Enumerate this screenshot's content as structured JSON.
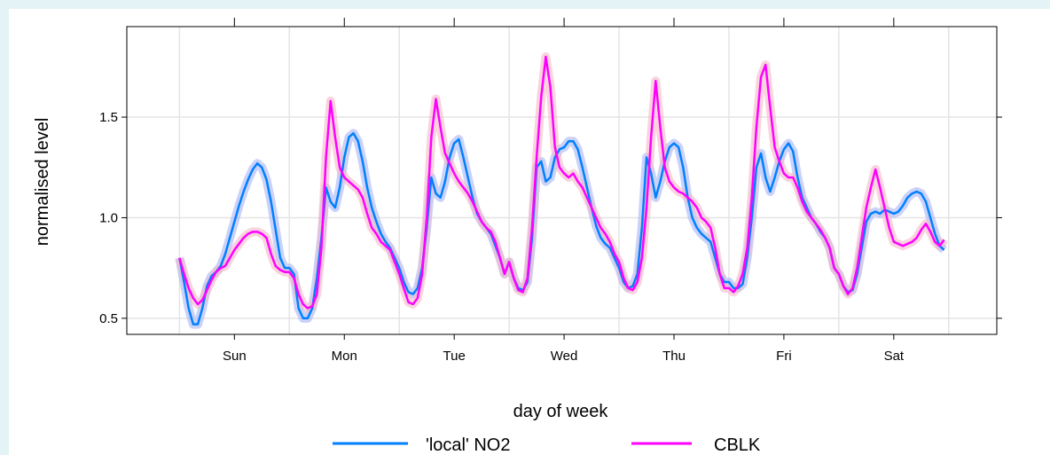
{
  "chart_data": {
    "type": "line",
    "x_label": "day of week",
    "y_label": "normalised level",
    "x": [
      0,
      1,
      2,
      3,
      4,
      5,
      6,
      7,
      8,
      9,
      10,
      11,
      12,
      13,
      14,
      15,
      16,
      17,
      18,
      19,
      20,
      21,
      22,
      23,
      24,
      25,
      26,
      27,
      28,
      29,
      30,
      31,
      32,
      33,
      34,
      35,
      36,
      37,
      38,
      39,
      40,
      41,
      42,
      43,
      44,
      45,
      46,
      47,
      48,
      49,
      50,
      51,
      52,
      53,
      54,
      55,
      56,
      57,
      58,
      59,
      60,
      61,
      62,
      63,
      64,
      65,
      66,
      67,
      68,
      69,
      70,
      71,
      72,
      73,
      74,
      75,
      76,
      77,
      78,
      79,
      80,
      81,
      82,
      83,
      84,
      85,
      86,
      87,
      88,
      89,
      90,
      91,
      92,
      93,
      94,
      95,
      96,
      97,
      98,
      99,
      100,
      101,
      102,
      103,
      104,
      105,
      106,
      107,
      108,
      109,
      110,
      111,
      112,
      113,
      114,
      115,
      116,
      117,
      118,
      119,
      120,
      121,
      122,
      123,
      124,
      125,
      126,
      127,
      128,
      129,
      130,
      131,
      132,
      133,
      134,
      135,
      136,
      137,
      138,
      139,
      140,
      141,
      142,
      143,
      144,
      145,
      146,
      147,
      148,
      149,
      150,
      151,
      152,
      153,
      154,
      155,
      156,
      157,
      158,
      159,
      160,
      161,
      162,
      163,
      164,
      165,
      166,
      167
    ],
    "series": [
      {
        "name": "'local' NO2",
        "color": "#0080ff",
        "band_color": "#a9b4f5",
        "values": [
          0.8,
          0.68,
          0.55,
          0.47,
          0.47,
          0.55,
          0.66,
          0.71,
          0.73,
          0.76,
          0.82,
          0.9,
          0.98,
          1.06,
          1.13,
          1.19,
          1.24,
          1.27,
          1.25,
          1.19,
          1.08,
          0.94,
          0.8,
          0.75,
          0.75,
          0.72,
          0.55,
          0.5,
          0.5,
          0.55,
          0.7,
          0.9,
          1.15,
          1.08,
          1.05,
          1.15,
          1.3,
          1.4,
          1.42,
          1.38,
          1.28,
          1.15,
          1.05,
          0.98,
          0.92,
          0.88,
          0.85,
          0.8,
          0.75,
          0.68,
          0.63,
          0.62,
          0.65,
          0.75,
          0.95,
          1.2,
          1.12,
          1.1,
          1.18,
          1.3,
          1.37,
          1.39,
          1.3,
          1.2,
          1.1,
          1.02,
          0.98,
          0.95,
          0.92,
          0.86,
          0.8,
          0.72,
          0.78,
          0.7,
          0.65,
          0.64,
          0.68,
          0.9,
          1.25,
          1.28,
          1.18,
          1.2,
          1.3,
          1.34,
          1.35,
          1.38,
          1.38,
          1.34,
          1.25,
          1.15,
          1.05,
          0.96,
          0.9,
          0.87,
          0.85,
          0.8,
          0.75,
          0.68,
          0.65,
          0.66,
          0.72,
          0.95,
          1.3,
          1.22,
          1.1,
          1.18,
          1.28,
          1.35,
          1.37,
          1.35,
          1.25,
          1.1,
          1.0,
          0.95,
          0.92,
          0.9,
          0.88,
          0.8,
          0.72,
          0.68,
          0.68,
          0.65,
          0.65,
          0.67,
          0.8,
          1.0,
          1.25,
          1.32,
          1.2,
          1.13,
          1.2,
          1.28,
          1.34,
          1.37,
          1.33,
          1.2,
          1.1,
          1.05,
          1.0,
          0.97,
          0.93,
          0.9,
          0.85,
          0.75,
          0.72,
          0.66,
          0.63,
          0.64,
          0.72,
          0.85,
          0.98,
          1.02,
          1.03,
          1.02,
          1.04,
          1.03,
          1.02,
          1.03,
          1.06,
          1.1,
          1.12,
          1.13,
          1.12,
          1.08,
          1.0,
          0.92,
          0.86,
          0.84
        ]
      },
      {
        "name": "CBLK",
        "color": "#ff00ff",
        "band_color": "#f5b8c8",
        "values": [
          0.8,
          0.72,
          0.65,
          0.6,
          0.57,
          0.59,
          0.64,
          0.69,
          0.73,
          0.75,
          0.76,
          0.8,
          0.84,
          0.87,
          0.9,
          0.92,
          0.93,
          0.93,
          0.92,
          0.9,
          0.82,
          0.76,
          0.74,
          0.73,
          0.73,
          0.7,
          0.62,
          0.57,
          0.55,
          0.56,
          0.62,
          0.85,
          1.3,
          1.58,
          1.4,
          1.25,
          1.2,
          1.18,
          1.16,
          1.14,
          1.1,
          1.02,
          0.95,
          0.92,
          0.88,
          0.86,
          0.84,
          0.78,
          0.72,
          0.65,
          0.58,
          0.57,
          0.6,
          0.72,
          1.0,
          1.4,
          1.59,
          1.45,
          1.32,
          1.27,
          1.22,
          1.18,
          1.15,
          1.12,
          1.08,
          1.03,
          0.98,
          0.95,
          0.93,
          0.88,
          0.8,
          0.72,
          0.78,
          0.7,
          0.64,
          0.63,
          0.7,
          0.95,
          1.3,
          1.6,
          1.8,
          1.65,
          1.35,
          1.25,
          1.22,
          1.2,
          1.22,
          1.18,
          1.15,
          1.1,
          1.05,
          1.0,
          0.95,
          0.92,
          0.88,
          0.82,
          0.78,
          0.7,
          0.65,
          0.64,
          0.68,
          0.8,
          1.05,
          1.4,
          1.68,
          1.45,
          1.25,
          1.18,
          1.15,
          1.13,
          1.12,
          1.1,
          1.08,
          1.05,
          1.0,
          0.98,
          0.95,
          0.85,
          0.72,
          0.65,
          0.65,
          0.63,
          0.66,
          0.72,
          0.85,
          1.1,
          1.45,
          1.7,
          1.76,
          1.55,
          1.35,
          1.28,
          1.22,
          1.2,
          1.2,
          1.15,
          1.08,
          1.03,
          1.0,
          0.97,
          0.94,
          0.9,
          0.85,
          0.75,
          0.72,
          0.66,
          0.62,
          0.65,
          0.75,
          0.9,
          1.05,
          1.15,
          1.24,
          1.15,
          1.05,
          0.95,
          0.88,
          0.87,
          0.86,
          0.87,
          0.88,
          0.9,
          0.94,
          0.97,
          0.93,
          0.88,
          0.86,
          0.89
        ]
      }
    ],
    "xlim": [
      -11.5,
      178.5
    ],
    "xticks": [
      {
        "value": 12,
        "label": "Sun"
      },
      {
        "value": 36,
        "label": "Mon"
      },
      {
        "value": 60,
        "label": "Tue"
      },
      {
        "value": 84,
        "label": "Wed"
      },
      {
        "value": 108,
        "label": "Thu"
      },
      {
        "value": 132,
        "label": "Fri"
      },
      {
        "value": 156,
        "label": "Sat"
      }
    ],
    "xgrid": [
      0,
      24,
      48,
      72,
      96,
      120,
      144,
      168
    ],
    "ylim": [
      0.42,
      1.95
    ],
    "yticks": [
      0.5,
      {
        "value": 1,
        "label": "1.0"
      },
      1.5
    ],
    "grid": true,
    "legend": "bottom"
  }
}
